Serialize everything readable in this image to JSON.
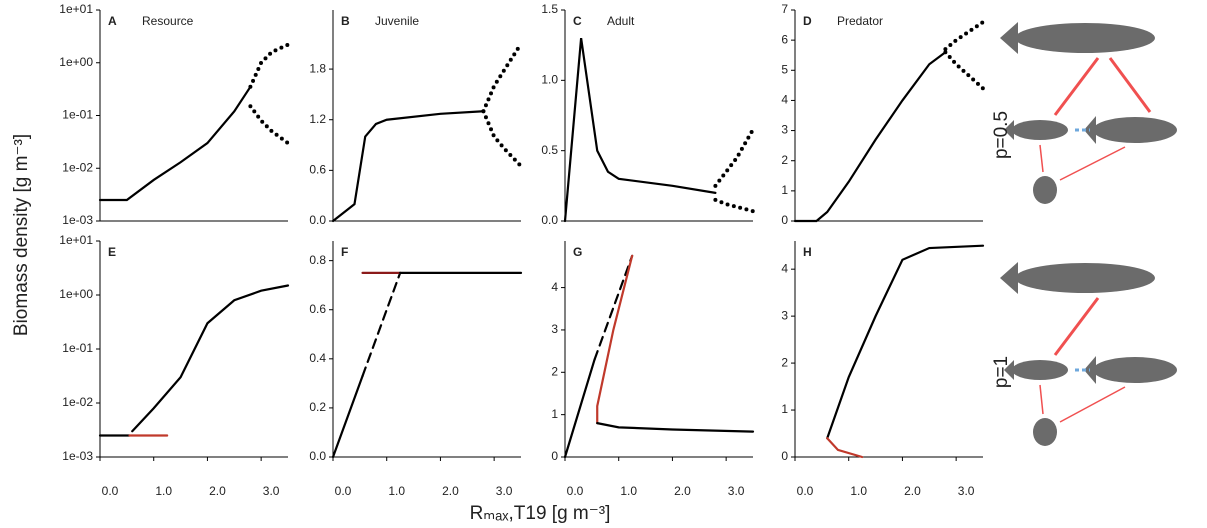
{
  "y_label": "Biomass density [g m⁻³]",
  "x_label": "Rₘₐₓ,T19 [g m⁻³]",
  "side_labels": [
    "p=0.5",
    "p=1"
  ],
  "chart_data": [
    {
      "type": "line",
      "letter": "A",
      "title": "Resource",
      "log_y": true,
      "xlim": [
        0,
        3.5
      ],
      "ylim": [
        0.001,
        10
      ],
      "yticks": [
        {
          "value": 10,
          "label": "1e+01"
        },
        {
          "value": 1,
          "label": "1e+00"
        },
        {
          "value": 0.1,
          "label": "1e-01"
        },
        {
          "value": 0.01,
          "label": "1e-02"
        },
        {
          "value": 0.001,
          "label": "1e-03"
        }
      ],
      "series": [
        {
          "color": "#000000",
          "style": "solid",
          "x": [
            0,
            0.5,
            1.0,
            1.5,
            2.0,
            2.5,
            2.8
          ],
          "values": [
            0.0025,
            0.0025,
            0.006,
            0.013,
            0.03,
            0.12,
            0.35
          ]
        },
        {
          "color": "#000000",
          "style": "dotted",
          "x": [
            2.8,
            3.0,
            3.2,
            3.5
          ],
          "values": [
            0.35,
            1.0,
            1.6,
            2.2
          ]
        },
        {
          "color": "#000000",
          "style": "dotted",
          "x": [
            2.8,
            3.0,
            3.2,
            3.5
          ],
          "values": [
            0.15,
            0.08,
            0.05,
            0.03
          ]
        }
      ]
    },
    {
      "type": "line",
      "letter": "B",
      "title": "Juvenile",
      "log_y": false,
      "xlim": [
        0,
        3.5
      ],
      "ylim": [
        0,
        2.5
      ],
      "yticks": [
        {
          "value": 0,
          "label": "0.0"
        },
        {
          "value": 0.6,
          "label": "0.6"
        },
        {
          "value": 1.2,
          "label": "1.2"
        },
        {
          "value": 1.8,
          "label": "1.8"
        }
      ],
      "series": [
        {
          "color": "#000000",
          "style": "solid",
          "x": [
            0,
            0.3,
            0.4,
            0.6,
            0.8,
            1.0,
            2.0,
            2.8
          ],
          "values": [
            0,
            0.15,
            0.2,
            1.0,
            1.15,
            1.2,
            1.27,
            1.3
          ]
        },
        {
          "color": "#000000",
          "style": "dotted",
          "x": [
            2.8,
            3.0,
            3.2,
            3.5
          ],
          "values": [
            1.3,
            1.6,
            1.8,
            2.1
          ]
        },
        {
          "color": "#000000",
          "style": "dotted",
          "x": [
            2.8,
            3.0,
            3.2,
            3.5
          ],
          "values": [
            1.3,
            1.0,
            0.85,
            0.65
          ]
        }
      ]
    },
    {
      "type": "line",
      "letter": "C",
      "title": "Adult",
      "log_y": false,
      "xlim": [
        0,
        3.5
      ],
      "ylim": [
        0,
        1.5
      ],
      "yticks": [
        {
          "value": 0,
          "label": "0.0"
        },
        {
          "value": 0.5,
          "label": "0.5"
        },
        {
          "value": 1,
          "label": "1.0"
        },
        {
          "value": 1.5,
          "label": "1.5"
        }
      ],
      "series": [
        {
          "color": "#000000",
          "style": "solid",
          "x": [
            0,
            0.3,
            0.45,
            0.6,
            0.8,
            1.0,
            2.0,
            2.8
          ],
          "values": [
            0,
            1.3,
            0.9,
            0.5,
            0.35,
            0.3,
            0.25,
            0.2
          ]
        },
        {
          "color": "#000000",
          "style": "dotted",
          "x": [
            2.8,
            3.0,
            3.2,
            3.5
          ],
          "values": [
            0.25,
            0.35,
            0.45,
            0.65
          ]
        },
        {
          "color": "#000000",
          "style": "dotted",
          "x": [
            2.8,
            3.0,
            3.2,
            3.5
          ],
          "values": [
            0.15,
            0.12,
            0.1,
            0.07
          ]
        }
      ]
    },
    {
      "type": "line",
      "letter": "D",
      "title": "Predator",
      "log_y": false,
      "xlim": [
        0,
        3.5
      ],
      "ylim": [
        0,
        7
      ],
      "yticks": [
        0,
        1,
        2,
        3,
        4,
        5,
        6,
        7
      ],
      "series": [
        {
          "color": "#000000",
          "style": "solid",
          "x": [
            0,
            0.4,
            0.6,
            1.0,
            1.5,
            2.0,
            2.5,
            2.8
          ],
          "values": [
            0,
            0,
            0.3,
            1.3,
            2.7,
            4.0,
            5.2,
            5.6
          ]
        },
        {
          "color": "#000000",
          "style": "dotted",
          "x": [
            2.8,
            3.0,
            3.5
          ],
          "values": [
            5.7,
            6.0,
            6.6
          ]
        },
        {
          "color": "#000000",
          "style": "dotted",
          "x": [
            2.8,
            3.0,
            3.5
          ],
          "values": [
            5.6,
            5.2,
            4.4
          ]
        }
      ]
    },
    {
      "type": "line",
      "letter": "E",
      "title": null,
      "log_y": true,
      "xlim": [
        0,
        3.5
      ],
      "ylim": [
        0.001,
        10
      ],
      "xticks": [
        {
          "value": 0,
          "label": "0.0"
        },
        {
          "value": 1,
          "label": "1.0"
        },
        {
          "value": 2,
          "label": "2.0"
        },
        {
          "value": 3,
          "label": "3.0"
        }
      ],
      "yticks": [
        {
          "value": 10,
          "label": "1e+01"
        },
        {
          "value": 1,
          "label": "1e+00"
        },
        {
          "value": 0.1,
          "label": "1e-01"
        },
        {
          "value": 0.01,
          "label": "1e-02"
        },
        {
          "value": 0.001,
          "label": "1e-03"
        }
      ],
      "series": [
        {
          "color": "#000000",
          "style": "solid",
          "x": [
            0,
            0.55
          ],
          "values": [
            0.0025,
            0.0025
          ]
        },
        {
          "color": "#c0392b",
          "style": "solid",
          "x": [
            0.55,
            1.25
          ],
          "values": [
            0.0025,
            0.0025
          ]
        },
        {
          "color": "#000000",
          "style": "solid",
          "x": [
            0.6,
            1.0,
            1.5,
            2.0,
            2.5,
            3.0,
            3.5
          ],
          "values": [
            0.003,
            0.008,
            0.03,
            0.3,
            0.8,
            1.2,
            1.5
          ]
        }
      ]
    },
    {
      "type": "line",
      "letter": "F",
      "title": null,
      "log_y": false,
      "xlim": [
        0,
        3.5
      ],
      "ylim": [
        0,
        0.88
      ],
      "xticks": [
        {
          "value": 0,
          "label": "0.0"
        },
        {
          "value": 1,
          "label": "1.0"
        },
        {
          "value": 2,
          "label": "2.0"
        },
        {
          "value": 3,
          "label": "3.0"
        }
      ],
      "yticks": [
        {
          "value": 0,
          "label": "0.0"
        },
        0.2,
        0.4,
        0.6,
        0.8
      ],
      "series": [
        {
          "color": "#000000",
          "style": "solid",
          "x": [
            0,
            0.55
          ],
          "values": [
            0,
            0.33
          ]
        },
        {
          "color": "#000000",
          "style": "dashed",
          "x": [
            0.55,
            1.25
          ],
          "values": [
            0.33,
            0.75
          ]
        },
        {
          "color": "#8b1a1a",
          "style": "solid",
          "x": [
            0.55,
            1.25
          ],
          "values": [
            0.75,
            0.75
          ]
        },
        {
          "color": "#000000",
          "style": "solid",
          "x": [
            1.25,
            3.5
          ],
          "values": [
            0.75,
            0.75
          ]
        }
      ]
    },
    {
      "type": "line",
      "letter": "G",
      "title": null,
      "log_y": false,
      "xlim": [
        0,
        3.5
      ],
      "ylim": [
        0,
        5.1
      ],
      "xticks": [
        {
          "value": 0,
          "label": "0.0"
        },
        {
          "value": 1,
          "label": "1.0"
        },
        {
          "value": 2,
          "label": "2.0"
        },
        {
          "value": 3,
          "label": "3.0"
        }
      ],
      "yticks": [
        0,
        1,
        2,
        3,
        4
      ],
      "series": [
        {
          "color": "#000000",
          "style": "solid",
          "x": [
            0,
            0.55
          ],
          "values": [
            0,
            2.3
          ]
        },
        {
          "color": "#000000",
          "style": "dashed",
          "x": [
            0.55,
            1.25
          ],
          "values": [
            2.3,
            4.75
          ]
        },
        {
          "color": "#c0392b",
          "style": "solid",
          "x": [
            1.25,
            0.9,
            0.7,
            0.6,
            0.6
          ],
          "values": [
            4.75,
            3.0,
            1.8,
            1.2,
            0.8
          ]
        },
        {
          "color": "#000000",
          "style": "solid",
          "x": [
            0.6,
            1.0,
            2.0,
            3.5
          ],
          "values": [
            0.8,
            0.7,
            0.65,
            0.6
          ]
        }
      ]
    },
    {
      "type": "line",
      "letter": "H",
      "title": null,
      "log_y": false,
      "xlim": [
        0,
        3.5
      ],
      "ylim": [
        0,
        4.6
      ],
      "xticks": [
        {
          "value": 0,
          "label": "0.0"
        },
        {
          "value": 1,
          "label": "1.0"
        },
        {
          "value": 2,
          "label": "2.0"
        },
        {
          "value": 3,
          "label": "3.0"
        }
      ],
      "yticks": [
        0,
        1,
        2,
        3,
        4
      ],
      "series": [
        {
          "color": "#000000",
          "style": "solid",
          "x": [
            0.6,
            1.0,
            1.5,
            2.0,
            2.5,
            3.5
          ],
          "values": [
            0.4,
            1.7,
            3.0,
            4.2,
            4.45,
            4.5
          ]
        },
        {
          "color": "#c0392b",
          "style": "solid",
          "x": [
            0.6,
            0.8,
            1.25
          ],
          "values": [
            0.4,
            0.15,
            0
          ]
        }
      ]
    }
  ]
}
